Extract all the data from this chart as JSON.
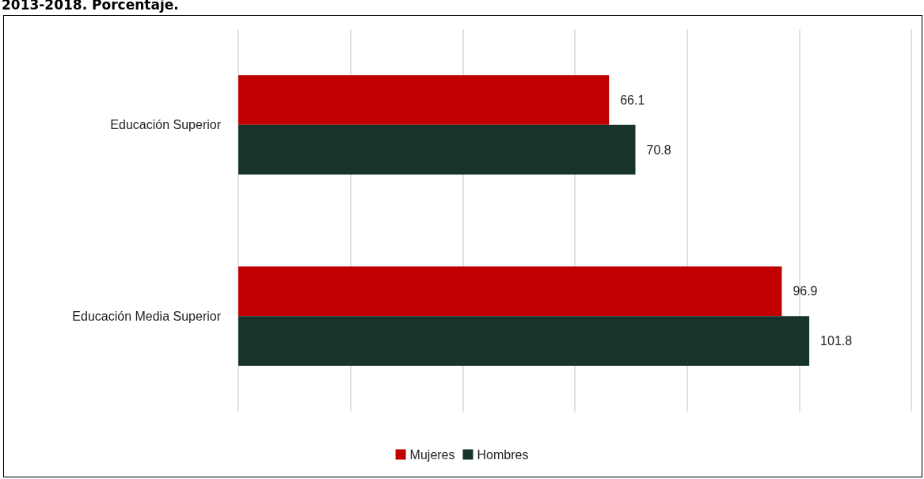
{
  "chart_data": {
    "type": "bar",
    "orientation": "horizontal",
    "title": "2013-2018. Porcentaje.",
    "categories": [
      "Educación Superior",
      "Educación Media Superior"
    ],
    "series": [
      {
        "name": "Mujeres",
        "color": "#c00000",
        "values": [
          66.1,
          96.9
        ]
      },
      {
        "name": "Hombres",
        "color": "#17332b",
        "values": [
          70.8,
          101.8
        ]
      }
    ],
    "xlim": [
      0,
      120
    ],
    "xticks": [
      {
        "value": 0,
        "label": null
      },
      {
        "value": 20,
        "label": null
      },
      {
        "value": 40,
        "label": null
      },
      {
        "value": 60,
        "label": null
      },
      {
        "value": 80,
        "label": null
      },
      {
        "value": 100,
        "label": null
      },
      {
        "value": 120,
        "label": null
      }
    ],
    "tick_labels": "y",
    "grid": "x",
    "legend": "bottom",
    "data_labels": true
  }
}
